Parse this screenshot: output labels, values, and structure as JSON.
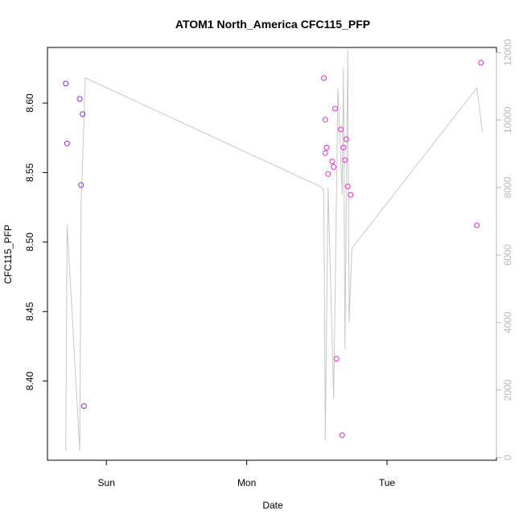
{
  "chart_data": {
    "type": "scatter",
    "title": "ATOM1 North_America CFC115_PFP",
    "xlabel": "Date",
    "ylabel": "CFC115_PFP",
    "x_ticks": [
      "Sun",
      "Mon",
      "Tue"
    ],
    "x_tick_days": [
      1,
      2,
      3
    ],
    "xlim_days": [
      0.58,
      3.78
    ],
    "ylim": [
      8.343,
      8.64
    ],
    "y_ticks": [
      8.4,
      8.45,
      8.5,
      8.55,
      8.6
    ],
    "y_tick_labels": [
      "8.40",
      "8.45",
      "8.50",
      "8.55",
      "8.60"
    ],
    "y2lim": [
      -80,
      12150
    ],
    "y2_ticks": [
      0,
      2000,
      4000,
      6000,
      8000,
      10000,
      12000
    ],
    "y2_tick_labels": [
      "0",
      "2000",
      "4000",
      "6000",
      "8000",
      "10000",
      "12000"
    ],
    "grid": false,
    "colors": {
      "point_early": "#8b2be2",
      "point_late": "#ee2bd0",
      "line": "#c8c8c8",
      "right_axis": "#b8b8b8"
    },
    "series": [
      {
        "kind": "points",
        "y_axis": "left",
        "points": [
          {
            "x": 0.71,
            "y": 8.614,
            "color": "#8b2be2"
          },
          {
            "x": 0.72,
            "y": 8.571,
            "color": "#8b2be2"
          },
          {
            "x": 0.81,
            "y": 8.603,
            "color": "#8b2be2"
          },
          {
            "x": 0.82,
            "y": 8.541,
            "color": "#8b2be2"
          },
          {
            "x": 0.83,
            "y": 8.592,
            "color": "#8b2be2"
          },
          {
            "x": 0.84,
            "y": 8.382,
            "color": "#8b2be2"
          },
          {
            "x": 2.55,
            "y": 8.618,
            "color": "#ee2bd0"
          },
          {
            "x": 2.56,
            "y": 8.588,
            "color": "#ee2bd0"
          },
          {
            "x": 2.56,
            "y": 8.564,
            "color": "#ee2bd0"
          },
          {
            "x": 2.57,
            "y": 8.568,
            "color": "#ee2bd0"
          },
          {
            "x": 2.58,
            "y": 8.549,
            "color": "#ee2bd0"
          },
          {
            "x": 2.61,
            "y": 8.558,
            "color": "#ee2bd0"
          },
          {
            "x": 2.62,
            "y": 8.554,
            "color": "#ee2bd0"
          },
          {
            "x": 2.63,
            "y": 8.596,
            "color": "#ee2bd0"
          },
          {
            "x": 2.64,
            "y": 8.416,
            "color": "#ee2bd0"
          },
          {
            "x": 2.67,
            "y": 8.581,
            "color": "#ee2bd0"
          },
          {
            "x": 2.69,
            "y": 8.568,
            "color": "#ee2bd0"
          },
          {
            "x": 2.68,
            "y": 8.361,
            "color": "#ee2bd0"
          },
          {
            "x": 2.7,
            "y": 8.559,
            "color": "#ee2bd0"
          },
          {
            "x": 2.71,
            "y": 8.574,
            "color": "#ee2bd0"
          },
          {
            "x": 2.72,
            "y": 8.54,
            "color": "#ee2bd0"
          },
          {
            "x": 2.74,
            "y": 8.534,
            "color": "#ee2bd0"
          },
          {
            "x": 3.64,
            "y": 8.512,
            "color": "#ee2bd0"
          },
          {
            "x": 3.67,
            "y": 8.629,
            "color": "#ee2bd0"
          }
        ]
      },
      {
        "kind": "line",
        "y_axis": "right",
        "color": "#c8c8c8",
        "points": [
          {
            "x": 0.71,
            "y": 200
          },
          {
            "x": 0.72,
            "y": 6900
          },
          {
            "x": 0.81,
            "y": 200
          },
          {
            "x": 0.82,
            "y": 7500
          },
          {
            "x": 0.85,
            "y": 11250
          },
          {
            "x": 2.54,
            "y": 8000
          },
          {
            "x": 2.55,
            "y": 7800
          },
          {
            "x": 2.56,
            "y": 500
          },
          {
            "x": 2.58,
            "y": 8000
          },
          {
            "x": 2.62,
            "y": 1750
          },
          {
            "x": 2.65,
            "y": 10950
          },
          {
            "x": 2.68,
            "y": 7800
          },
          {
            "x": 2.69,
            "y": 11550
          },
          {
            "x": 2.7,
            "y": 3200
          },
          {
            "x": 2.72,
            "y": 12100
          },
          {
            "x": 2.73,
            "y": 4000
          },
          {
            "x": 2.75,
            "y": 6200
          },
          {
            "x": 3.64,
            "y": 10950
          },
          {
            "x": 3.68,
            "y": 9650
          }
        ]
      }
    ]
  }
}
